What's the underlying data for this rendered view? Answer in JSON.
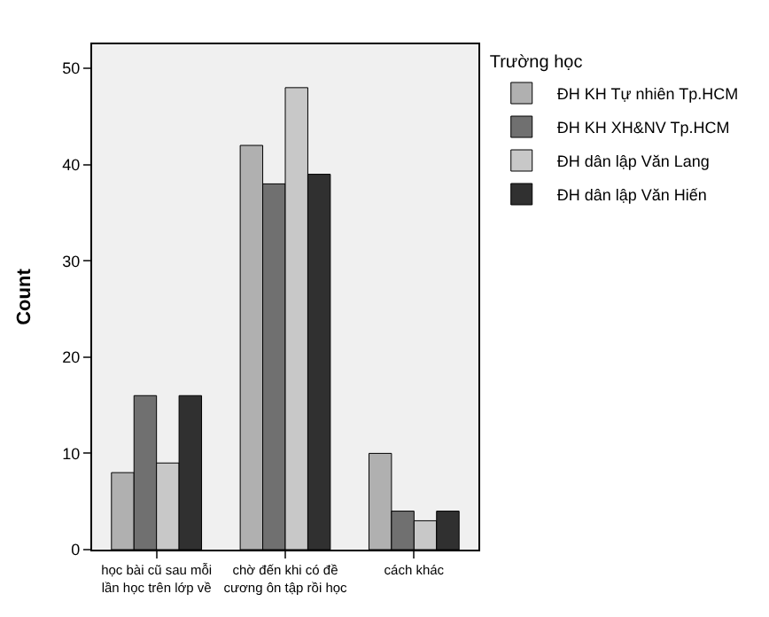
{
  "chart_data": {
    "type": "bar",
    "ylabel": "Count",
    "legend_title": "Trường học",
    "categories": [
      "học bài cũ sau mỗi lần học trên lớp về",
      "chờ đến khi có đề cương ôn tập rồi học",
      "cách khác"
    ],
    "series": [
      {
        "name": "ĐH KH Tự nhiên Tp.HCM",
        "color": "#b0b0b0",
        "values": [
          8,
          42,
          10
        ]
      },
      {
        "name": "ĐH KH XH&NV Tp.HCM",
        "color": "#707070",
        "values": [
          16,
          38,
          4
        ]
      },
      {
        "name": "ĐH dân lập Văn Lang",
        "color": "#c8c8c8",
        "values": [
          9,
          48,
          3
        ]
      },
      {
        "name": "ĐH dân lập Văn Hiến",
        "color": "#303030",
        "values": [
          16,
          39,
          4
        ]
      }
    ],
    "ylim": [
      0,
      52.5
    ],
    "yticks": [
      0,
      10,
      20,
      30,
      40,
      50
    ],
    "grid": false,
    "legend": "top right"
  }
}
